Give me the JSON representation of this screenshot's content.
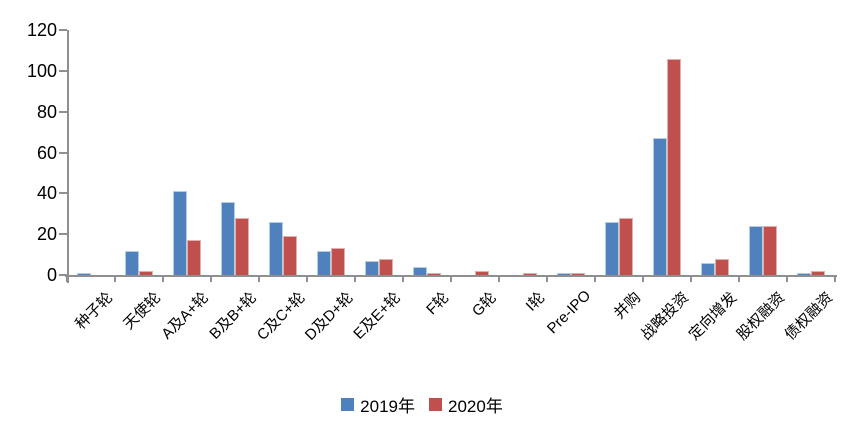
{
  "chart_data": {
    "type": "bar",
    "title": "",
    "xlabel": "",
    "ylabel": "",
    "categories": [
      "种子轮",
      "天使轮",
      "A及A+轮",
      "B及B+轮",
      "C及C+轮",
      "D及D+轮",
      "E及E+轮",
      "F轮",
      "G轮",
      "I轮",
      "Pre-IPO",
      "并购",
      "战略投资",
      "定向增发",
      "股权融资",
      "债权融资"
    ],
    "series": [
      {
        "name": "2019年",
        "color": "#4f81bd",
        "edge_color": "#b7cbe2",
        "values": [
          1,
          12,
          41,
          36,
          26,
          12,
          7,
          4,
          0,
          0,
          1,
          26,
          67,
          6,
          24,
          1
        ]
      },
      {
        "name": "2020年",
        "color": "#c0504d",
        "edge_color": "#e0b0ae",
        "values": [
          0,
          2,
          17,
          28,
          19,
          13,
          8,
          1,
          2,
          1,
          1,
          28,
          106,
          8,
          24,
          2
        ]
      }
    ],
    "ylim": [
      0,
      120
    ],
    "yticks": [
      0,
      20,
      40,
      60,
      80,
      100,
      120
    ],
    "grid": false,
    "legend_position": "bottom"
  },
  "colors": {
    "axis": "#8f8f8f",
    "text": "#000000",
    "background": "#ffffff"
  }
}
